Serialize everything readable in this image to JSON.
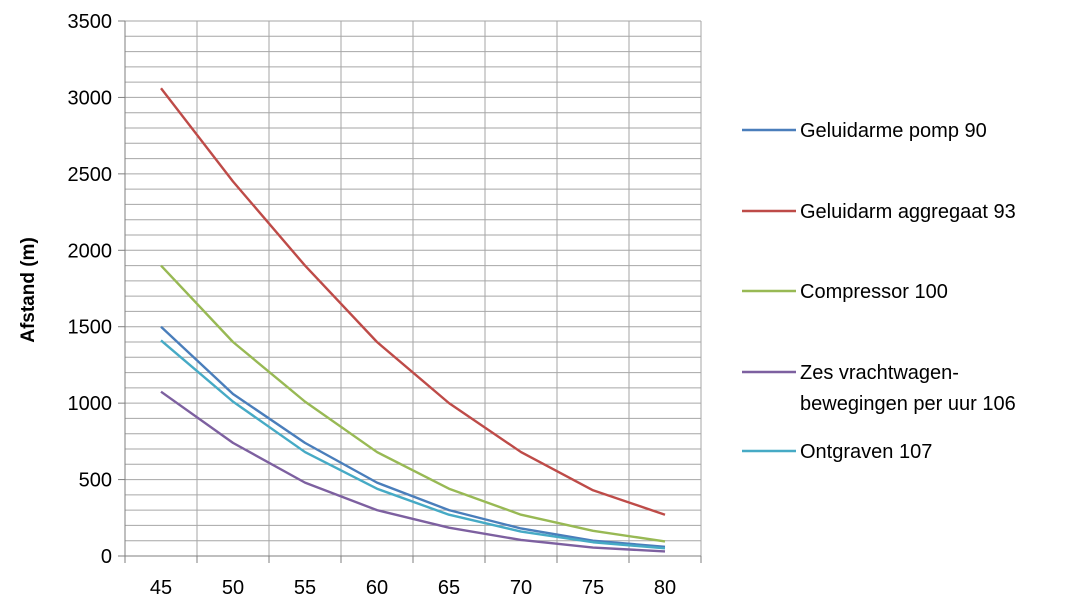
{
  "chart_data": {
    "type": "line",
    "title": "",
    "xlabel": "",
    "ylabel": "Afstand (m)",
    "categories": [
      "45",
      "50",
      "55",
      "60",
      "65",
      "70",
      "75",
      "80"
    ],
    "ylim": [
      0,
      3500
    ],
    "yticks": [
      "0",
      "500",
      "1000",
      "1500",
      "2000",
      "2500",
      "3000",
      "3500"
    ],
    "grid": true,
    "legend_position": "right",
    "series": [
      {
        "name": "Geluidarme pomp 90",
        "color": "#4a7ebb",
        "values": [
          1500,
          1060,
          740,
          480,
          300,
          180,
          100,
          60
        ]
      },
      {
        "name": "Geluidarm aggregaat 93",
        "color": "#be4b48",
        "values": [
          3060,
          2450,
          1900,
          1400,
          1000,
          680,
          430,
          270
        ]
      },
      {
        "name": "Compressor 100",
        "color": "#98b954",
        "values": [
          1900,
          1400,
          1010,
          680,
          440,
          270,
          165,
          95
        ]
      },
      {
        "name": "Zes vrachtwagen-bewegingen per uur 106",
        "legend_lines": [
          "Zes vrachtwagen-",
          "bewegingen per uur 106"
        ],
        "color": "#7d60a0",
        "values": [
          1075,
          740,
          480,
          300,
          185,
          105,
          55,
          30
        ]
      },
      {
        "name": "Ontgraven 107",
        "color": "#46aac5",
        "values": [
          1410,
          1010,
          680,
          440,
          270,
          160,
          90,
          50
        ]
      }
    ]
  }
}
